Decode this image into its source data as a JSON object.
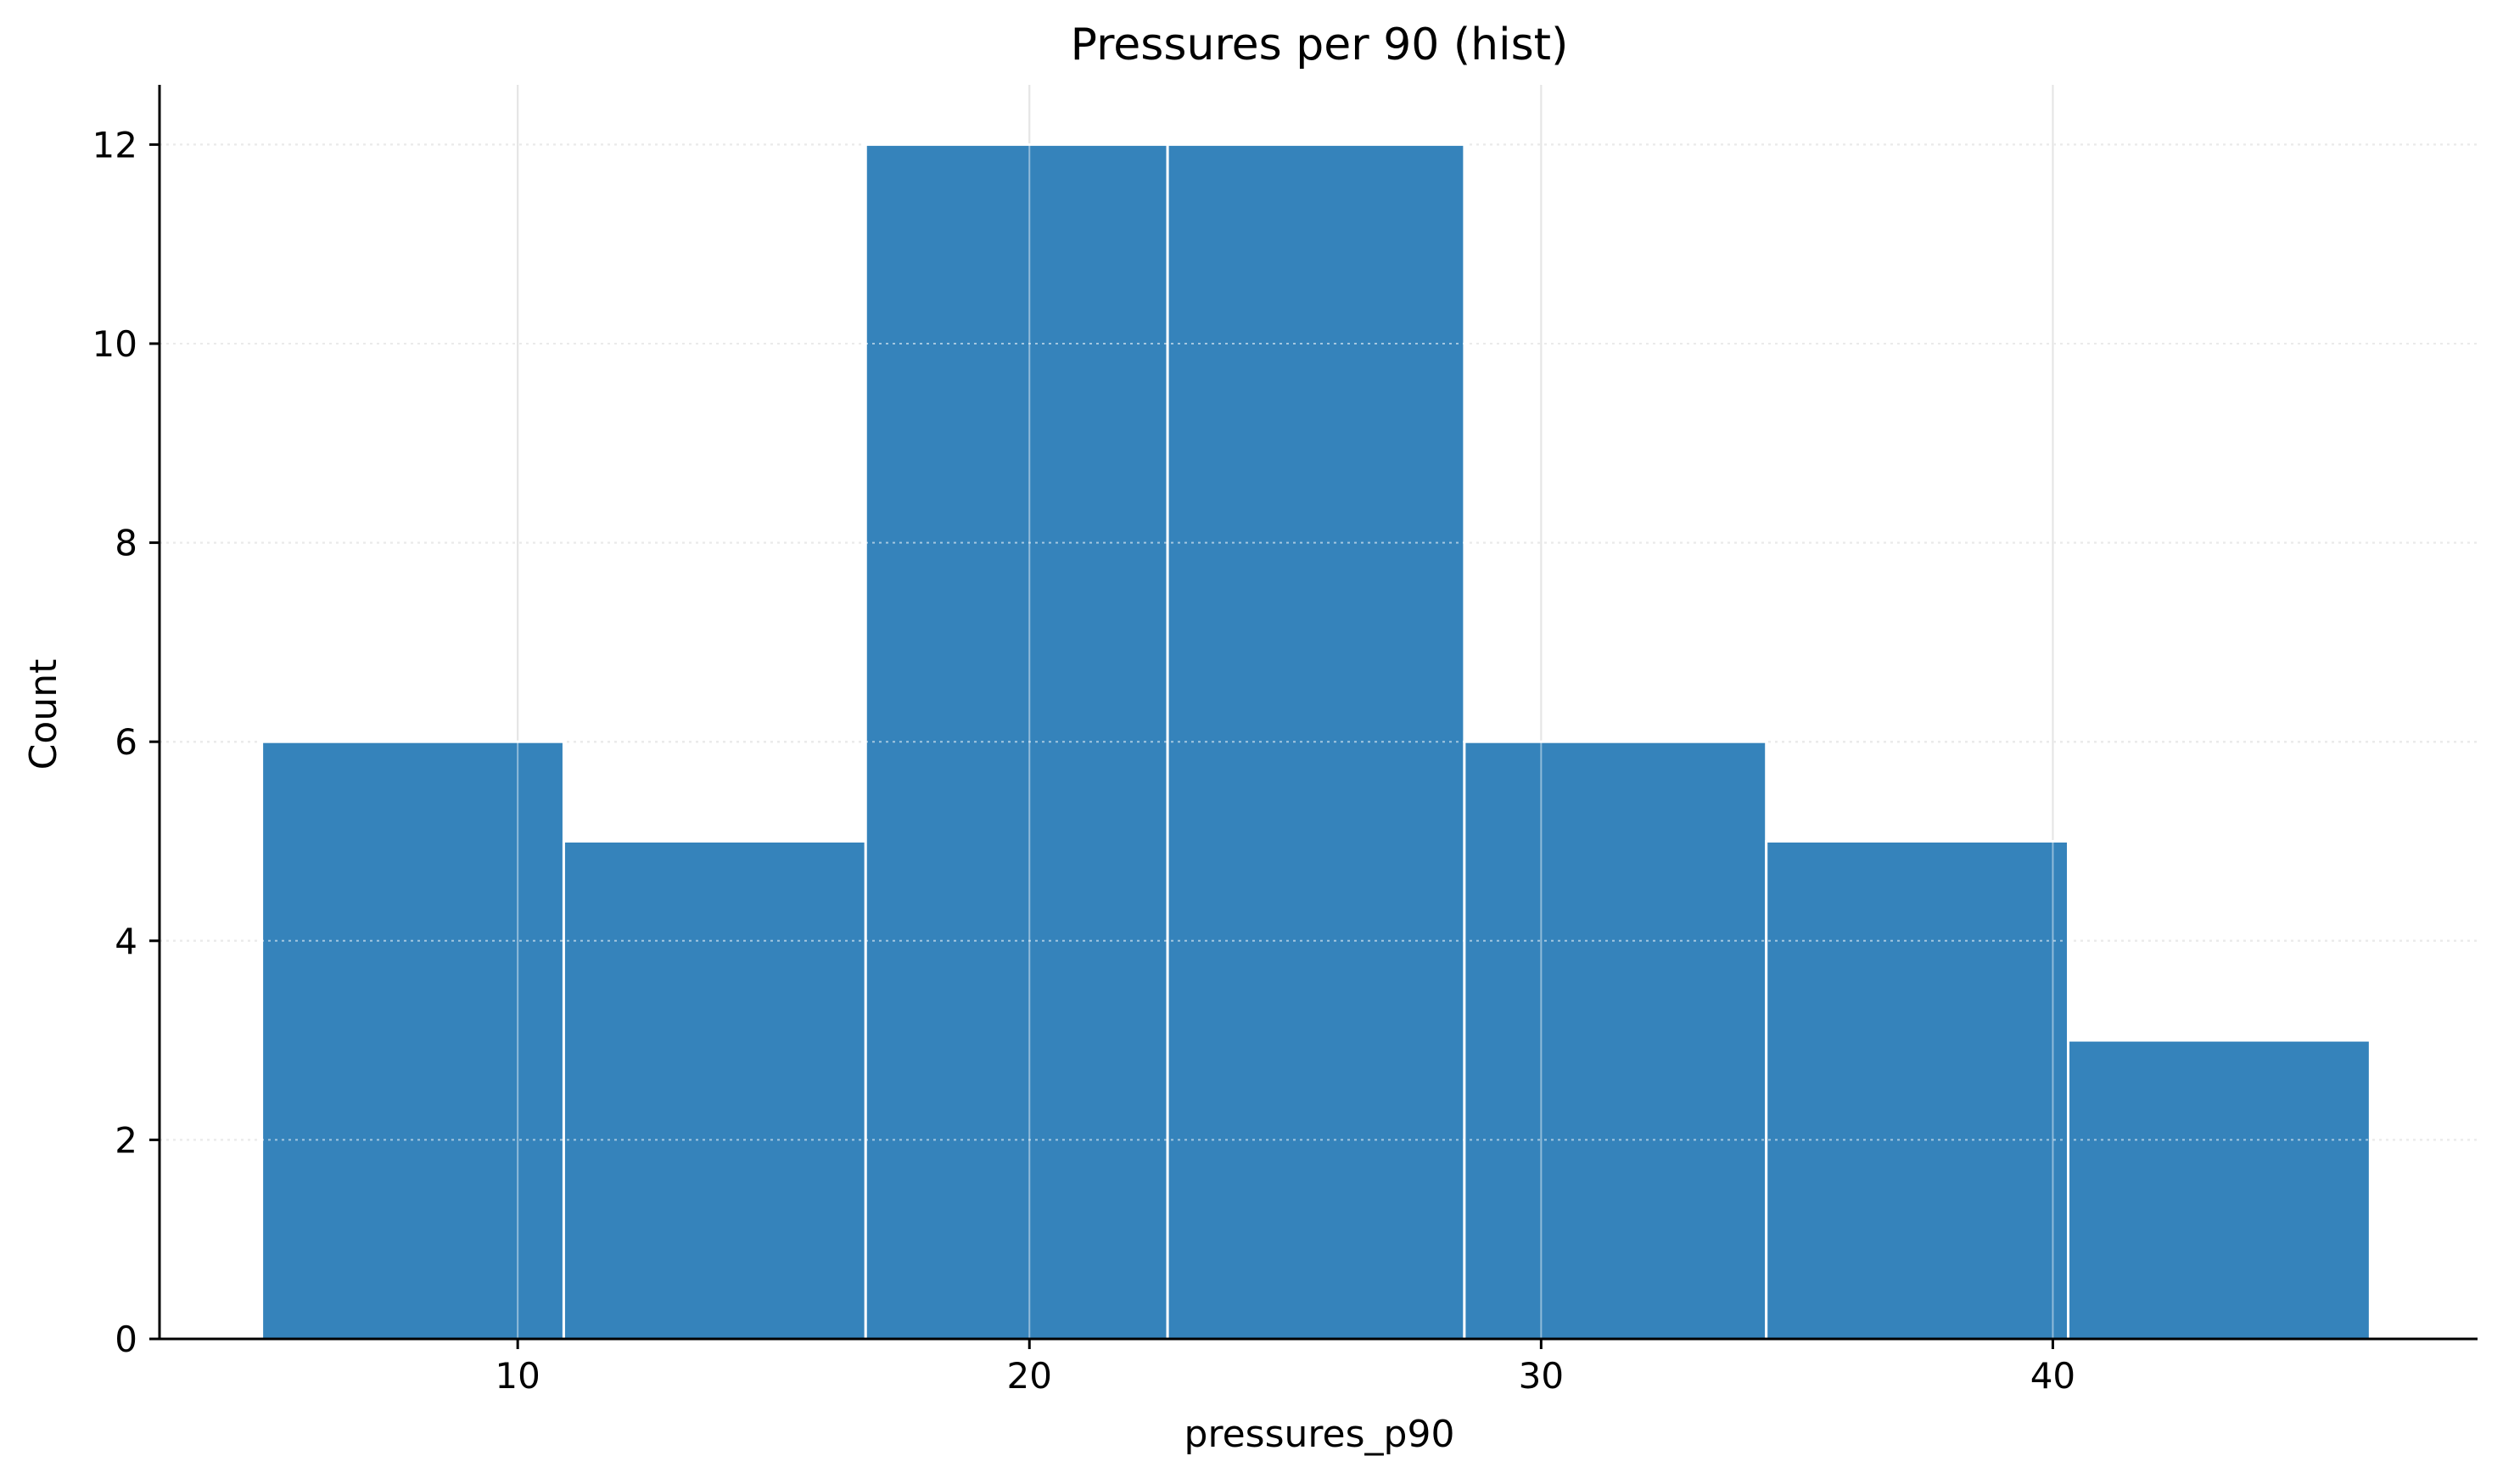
{
  "chart_data": {
    "type": "bar",
    "title": "Pressures per 90 (hist)",
    "xlabel": "pressures_p90",
    "ylabel": "Count",
    "xlim": [
      3.0,
      48.3
    ],
    "ylim": [
      0,
      12.6
    ],
    "xticks": [
      10,
      20,
      30,
      40
    ],
    "yticks": [
      0,
      2,
      4,
      6,
      8,
      10,
      12
    ],
    "bins": [
      {
        "x0": 5.0,
        "x1": 10.9,
        "count": 6
      },
      {
        "x0": 10.9,
        "x1": 16.8,
        "count": 5
      },
      {
        "x0": 16.8,
        "x1": 22.7,
        "count": 12
      },
      {
        "x0": 22.7,
        "x1": 28.5,
        "count": 12
      },
      {
        "x0": 28.5,
        "x1": 34.4,
        "count": 6
      },
      {
        "x0": 34.4,
        "x1": 40.3,
        "count": 5
      },
      {
        "x0": 40.3,
        "x1": 46.2,
        "count": 3
      }
    ],
    "grid": true,
    "colors": {
      "bar": "#3583bb",
      "bar_edge": "#ffffff",
      "grid": "#d0d0d0",
      "axis": "#000000"
    }
  }
}
